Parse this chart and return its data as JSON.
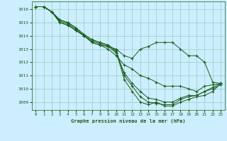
{
  "title": "Graphe pression niveau de la mer (hPa)",
  "background_color": "#cceeff",
  "grid_color": "#99ccbb",
  "line_color": "#1a5c1a",
  "xlim_min": -0.5,
  "xlim_max": 23.5,
  "ylim_min": 1008.4,
  "ylim_max": 1016.6,
  "yticks": [
    1009,
    1010,
    1011,
    1012,
    1013,
    1014,
    1015,
    1016
  ],
  "xticks": [
    0,
    1,
    2,
    3,
    4,
    5,
    6,
    7,
    8,
    9,
    10,
    11,
    12,
    13,
    14,
    15,
    16,
    17,
    18,
    19,
    20,
    21,
    22,
    23
  ],
  "series": [
    [
      1016.2,
      1016.2,
      1015.8,
      1015.0,
      1014.8,
      1014.4,
      1014.0,
      1013.5,
      1013.3,
      1013.2,
      1013.0,
      1012.5,
      1012.3,
      1013.0,
      1013.2,
      1013.5,
      1013.5,
      1013.5,
      1013.0,
      1012.5,
      1012.5,
      1012.0,
      1010.5,
      1010.4
    ],
    [
      1016.2,
      1016.2,
      1015.8,
      1015.0,
      1014.8,
      1014.4,
      1014.0,
      1013.5,
      1013.3,
      1013.0,
      1012.5,
      1011.8,
      1011.5,
      1011.0,
      1010.8,
      1010.5,
      1010.2,
      1010.2,
      1010.2,
      1010.0,
      1009.8,
      1010.2,
      1010.3,
      1010.4
    ],
    [
      1016.2,
      1016.2,
      1015.8,
      1015.1,
      1014.9,
      1014.5,
      1014.0,
      1013.6,
      1013.4,
      1013.2,
      1012.7,
      1011.2,
      1010.4,
      1009.8,
      1009.3,
      1009.2,
      1009.0,
      1009.0,
      1009.3,
      1009.5,
      1009.5,
      1009.8,
      1010.1,
      1010.4
    ],
    [
      1016.2,
      1016.2,
      1015.8,
      1015.2,
      1015.0,
      1014.6,
      1014.1,
      1013.7,
      1013.5,
      1013.3,
      1012.9,
      1011.0,
      1010.2,
      1009.4,
      1009.0,
      1008.9,
      1008.8,
      1008.8,
      1009.2,
      1009.4,
      1009.5,
      1009.8,
      1010.0,
      1010.3
    ],
    [
      1016.2,
      1016.2,
      1015.8,
      1015.2,
      1015.0,
      1014.6,
      1014.1,
      1013.7,
      1013.5,
      1013.3,
      1012.8,
      1010.7,
      1009.8,
      1009.0,
      1008.8,
      1009.0,
      1008.7,
      1008.7,
      1009.0,
      1009.2,
      1009.4,
      1009.5,
      1009.8,
      1010.4
    ]
  ]
}
